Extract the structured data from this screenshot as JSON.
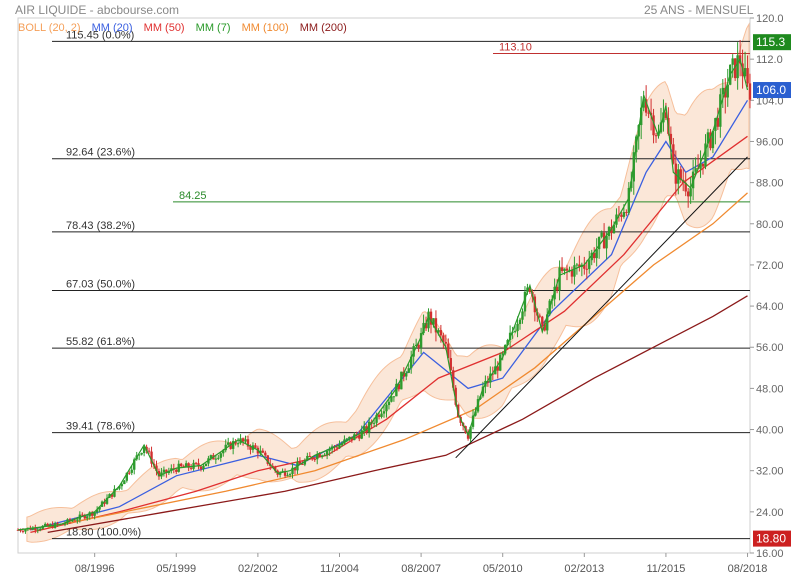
{
  "header": {
    "title": "AIR LIQUIDE - abcbourse.com",
    "period": "25 ANS - MENSUEL"
  },
  "legend": [
    {
      "label": "BOLL (20, 2)",
      "color": "#f5a05a"
    },
    {
      "label": "MM (20)",
      "color": "#3a5fe0"
    },
    {
      "label": "MM (50)",
      "color": "#e03030"
    },
    {
      "label": "MM (7)",
      "color": "#2a9a2a"
    },
    {
      "label": "MM (100)",
      "color": "#f08a30"
    },
    {
      "label": "MM (200)",
      "color": "#8b1a1a"
    }
  ],
  "chart_data": {
    "type": "candlestick",
    "title": "AIR LIQUIDE - abcbourse.com",
    "x_ticks": [
      "08/1996",
      "05/1999",
      "02/2002",
      "11/2004",
      "08/2007",
      "05/2010",
      "02/2013",
      "11/2015",
      "08/2018"
    ],
    "y_ticks": [
      "120.0",
      "112.0",
      "104.0",
      "96.00",
      "88.00",
      "80.00",
      "72.00",
      "64.00",
      "56.00",
      "48.00",
      "40.00",
      "32.00",
      "24.00",
      "16.00"
    ],
    "ylim": [
      16,
      120
    ],
    "fibonacci_levels": [
      {
        "value": 115.45,
        "label": "115.45",
        "pct": "(0.0%)"
      },
      {
        "value": 92.64,
        "label": "92.64",
        "pct": "(23.6%)"
      },
      {
        "value": 78.43,
        "label": "78.43",
        "pct": "(38.2%)"
      },
      {
        "value": 67.03,
        "label": "67.03",
        "pct": "(50.0%)"
      },
      {
        "value": 55.82,
        "label": "55.82",
        "pct": "(61.8%)"
      },
      {
        "value": 39.41,
        "label": "39.41",
        "pct": "(78.6%)"
      },
      {
        "value": 18.8,
        "label": "18.80",
        "pct": "(100.0%)"
      }
    ],
    "horizontal_lines": [
      {
        "value": 113.1,
        "label": "113.10",
        "color": "#c03030"
      },
      {
        "value": 84.25,
        "label": "84.25",
        "color": "#2a8a2a"
      }
    ],
    "price_badges": [
      {
        "value": 115.3,
        "label": "115.3",
        "color": "#1e8a1e"
      },
      {
        "value": 106.0,
        "label": "106.0",
        "color": "#2a5fd0"
      },
      {
        "value": 18.8,
        "label": "18.80",
        "color": "#cc2020"
      }
    ],
    "close_series": {
      "name": "AIR LIQUIDE",
      "points": [
        [
          "1994-01",
          20.5
        ],
        [
          "1995-06",
          21.5
        ],
        [
          "1996-08",
          24
        ],
        [
          "1997-06",
          29
        ],
        [
          "1998-04",
          37
        ],
        [
          "1998-10",
          31
        ],
        [
          "1999-05",
          32.5
        ],
        [
          "2000-03",
          33
        ],
        [
          "2000-12",
          36
        ],
        [
          "2001-06",
          38
        ],
        [
          "2002-02",
          36
        ],
        [
          "2002-10",
          31.5
        ],
        [
          "2003-03",
          32
        ],
        [
          "2004-01",
          35
        ],
        [
          "2004-11",
          37
        ],
        [
          "2005-10",
          40
        ],
        [
          "2006-10",
          48
        ],
        [
          "2007-08",
          58
        ],
        [
          "2007-11",
          62
        ],
        [
          "2008-06",
          56
        ],
        [
          "2008-11",
          43
        ],
        [
          "2009-03",
          39
        ],
        [
          "2009-09",
          48
        ],
        [
          "2010-05",
          54
        ],
        [
          "2011-04",
          68
        ],
        [
          "2011-09",
          59
        ],
        [
          "2012-04",
          70
        ],
        [
          "2013-02",
          72
        ],
        [
          "2014-01",
          79
        ],
        [
          "2014-08",
          85
        ],
        [
          "2015-02",
          105
        ],
        [
          "2015-08",
          97
        ],
        [
          "2015-11",
          103
        ],
        [
          "2016-02",
          90
        ],
        [
          "2016-09",
          87
        ],
        [
          "2017-06",
          98
        ],
        [
          "2018-01",
          109
        ],
        [
          "2018-05",
          112
        ],
        [
          "2018-08",
          106
        ]
      ]
    },
    "ma_series": [
      {
        "name": "MM (20)",
        "color": "#3a5fe0",
        "points": [
          [
            "1994-06",
            20.5
          ],
          [
            "1997-06",
            25
          ],
          [
            "1999-05",
            31
          ],
          [
            "2002-02",
            35
          ],
          [
            "2003-06",
            33
          ],
          [
            "2005-06",
            39
          ],
          [
            "2007-09",
            55
          ],
          [
            "2009-03",
            48
          ],
          [
            "2010-05",
            50
          ],
          [
            "2012-01",
            63
          ],
          [
            "2014-01",
            74
          ],
          [
            "2015-03",
            90
          ],
          [
            "2015-11",
            96
          ],
          [
            "2016-07",
            90
          ],
          [
            "2017-06",
            93
          ],
          [
            "2018-08",
            104
          ]
        ]
      },
      {
        "name": "MM (50)",
        "color": "#e03030",
        "points": [
          [
            "1994-06",
            20
          ],
          [
            "1997-06",
            24
          ],
          [
            "2000-01",
            28
          ],
          [
            "2002-02",
            32
          ],
          [
            "2004-06",
            35
          ],
          [
            "2006-06",
            42
          ],
          [
            "2008-03",
            50
          ],
          [
            "2010-05",
            55
          ],
          [
            "2012-06",
            63
          ],
          [
            "2014-06",
            74
          ],
          [
            "2016-06",
            88
          ],
          [
            "2018-08",
            97
          ]
        ]
      },
      {
        "name": "MM (100)",
        "color": "#f08a30",
        "points": [
          [
            "1995-01",
            21
          ],
          [
            "1998-01",
            24.5
          ],
          [
            "2001-01",
            28
          ],
          [
            "2004-01",
            32
          ],
          [
            "2007-01",
            38
          ],
          [
            "2009-06",
            44
          ],
          [
            "2011-06",
            52
          ],
          [
            "2013-06",
            62
          ],
          [
            "2015-06",
            72
          ],
          [
            "2017-06",
            80
          ],
          [
            "2018-08",
            86
          ]
        ]
      },
      {
        "name": "MM (200)",
        "color": "#8b1a1a",
        "points": [
          [
            "1995-01",
            20
          ],
          [
            "1999-01",
            24
          ],
          [
            "2003-01",
            28
          ],
          [
            "2006-01",
            32
          ],
          [
            "2008-06",
            35
          ],
          [
            "2011-01",
            42
          ],
          [
            "2013-06",
            50
          ],
          [
            "2015-06",
            56
          ],
          [
            "2017-06",
            62
          ],
          [
            "2018-08",
            66
          ]
        ]
      }
    ],
    "trendline": [
      [
        "2008-10",
        34.5
      ],
      [
        "2018-08",
        93
      ]
    ]
  }
}
